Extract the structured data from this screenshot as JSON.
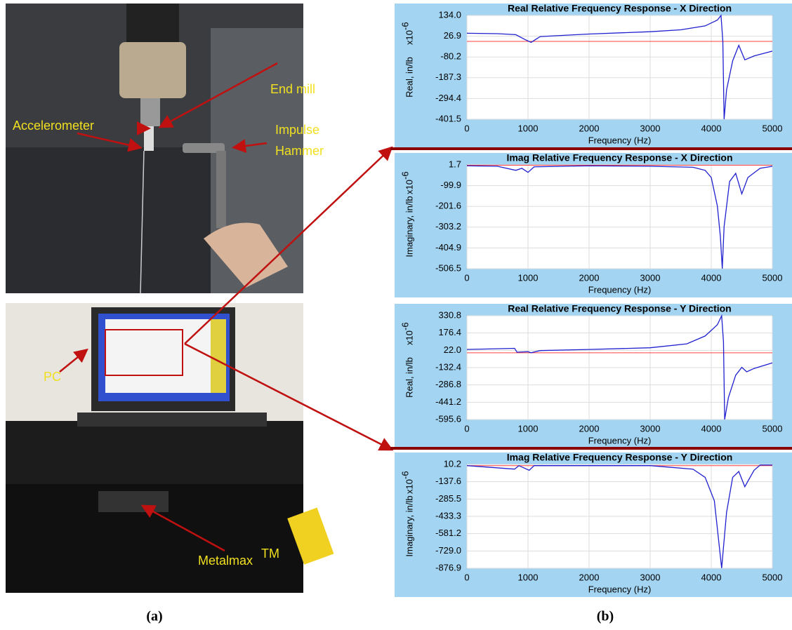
{
  "chart_data": [
    {
      "type": "line",
      "title": "Real Relative Frequency Response - X Direction",
      "xlabel": "Frequency (Hz)",
      "ylabel": "Real, in/lb",
      "y_multiplier": {
        "base": "x10",
        "exponent": "-6"
      },
      "xlim": [
        0,
        5000
      ],
      "xticks": [
        0,
        1000,
        2000,
        3000,
        4000,
        5000
      ],
      "ylim": [
        -401.5,
        134
      ],
      "yticks": [
        {
          "value": 134,
          "label": "134.0"
        },
        26.9,
        -80.2,
        -187.3,
        -294.4,
        -401.5
      ],
      "grid": true,
      "color": "#2020d0",
      "reference_line": {
        "value": 0,
        "color": "#ff4040"
      },
      "x": [
        0,
        500,
        800,
        950,
        1050,
        1200,
        2000,
        3000,
        3500,
        3900,
        4100,
        4160,
        4190,
        4210,
        4250,
        4350,
        4450,
        4550,
        4700,
        5000
      ],
      "values": [
        42,
        40,
        35,
        10,
        -5,
        25,
        38,
        50,
        60,
        80,
        110,
        134,
        0,
        -401,
        -250,
        -100,
        -20,
        -95,
        -75,
        -50
      ]
    },
    {
      "type": "line",
      "title": "Imag Relative Frequency Response - X Direction",
      "xlabel": "Frequency (Hz)",
      "ylabel": "Imaginary, in/lb",
      "y_multiplier": {
        "base": "x10",
        "exponent": "-6"
      },
      "xlim": [
        0,
        5000
      ],
      "xticks": [
        0,
        1000,
        2000,
        3000,
        4000,
        5000
      ],
      "ylim": [
        -506.5,
        1.7
      ],
      "yticks": [
        1.7,
        -99.9,
        -201.6,
        -303.2,
        -404.9,
        -506.5
      ],
      "grid": true,
      "color": "#2020d0",
      "reference_line": {
        "value": 0,
        "color": "#ff4040"
      },
      "x": [
        0,
        500,
        800,
        900,
        1000,
        1100,
        2000,
        3000,
        3700,
        3900,
        4000,
        4100,
        4150,
        4180,
        4210,
        4300,
        4400,
        4500,
        4600,
        4800,
        5000
      ],
      "values": [
        -3,
        -5,
        -25,
        -15,
        -35,
        -8,
        -3,
        -5,
        -10,
        -25,
        -60,
        -200,
        -350,
        -506,
        -300,
        -80,
        -40,
        -140,
        -60,
        -15,
        -5
      ]
    },
    {
      "type": "line",
      "title": "Real Relative Frequency Response - Y Direction",
      "xlabel": "Frequency (Hz)",
      "ylabel": "Real, in/lb",
      "y_multiplier": {
        "base": "x10",
        "exponent": "-6"
      },
      "xlim": [
        0,
        5000
      ],
      "xticks": [
        0,
        1000,
        2000,
        3000,
        4000,
        5000
      ],
      "ylim": [
        -595.6,
        330.8
      ],
      "yticks": [
        330.8,
        176.4,
        {
          "value": 22,
          "label": "22.0"
        },
        -132.4,
        -286.8,
        -441.2,
        -595.6
      ],
      "grid": true,
      "color": "#2020d0",
      "reference_line": {
        "value": 0,
        "color": "#ff4040"
      },
      "x": [
        0,
        780,
        820,
        1000,
        1050,
        1200,
        2000,
        3000,
        3600,
        3900,
        4100,
        4170,
        4200,
        4220,
        4280,
        4400,
        4500,
        4580,
        4700,
        5000
      ],
      "values": [
        30,
        40,
        5,
        10,
        0,
        20,
        30,
        45,
        80,
        150,
        250,
        330,
        100,
        -595,
        -400,
        -200,
        -130,
        -170,
        -140,
        -90
      ]
    },
    {
      "type": "line",
      "title": "Imag Relative Frequency Response - Y Direction",
      "xlabel": "Frequency (Hz)",
      "ylabel": "Imaginary, in/lb",
      "y_multiplier": {
        "base": "x10",
        "exponent": "-6"
      },
      "xlim": [
        0,
        5000
      ],
      "xticks": [
        0,
        1000,
        2000,
        3000,
        4000,
        5000
      ],
      "ylim": [
        -876.9,
        10.2
      ],
      "yticks": [
        10.2,
        -137.6,
        -285.5,
        -433.3,
        -581.2,
        {
          "value": -729,
          "label": "-729.0"
        },
        -876.9
      ],
      "grid": true,
      "color": "#2020d0",
      "reference_line": {
        "value": 0,
        "color": "#ff4040"
      },
      "x": [
        0,
        780,
        850,
        1020,
        1100,
        3000,
        3700,
        3900,
        4050,
        4170,
        4250,
        4350,
        4450,
        4550,
        4700,
        4800,
        5000
      ],
      "values": [
        0,
        -30,
        0,
        -40,
        0,
        0,
        -30,
        -100,
        -300,
        -876,
        -400,
        -100,
        -50,
        -180,
        -40,
        5,
        5
      ]
    }
  ],
  "photo_labels": {
    "end_mill": "End mill",
    "accelerometer": "Accelerometer",
    "impulse": "Impulse",
    "hammer": "Hammer",
    "pc": "PC",
    "metalmax": "Metalmax",
    "trademark": "TM"
  },
  "panel_labels": [
    "(a)",
    "(b)"
  ]
}
